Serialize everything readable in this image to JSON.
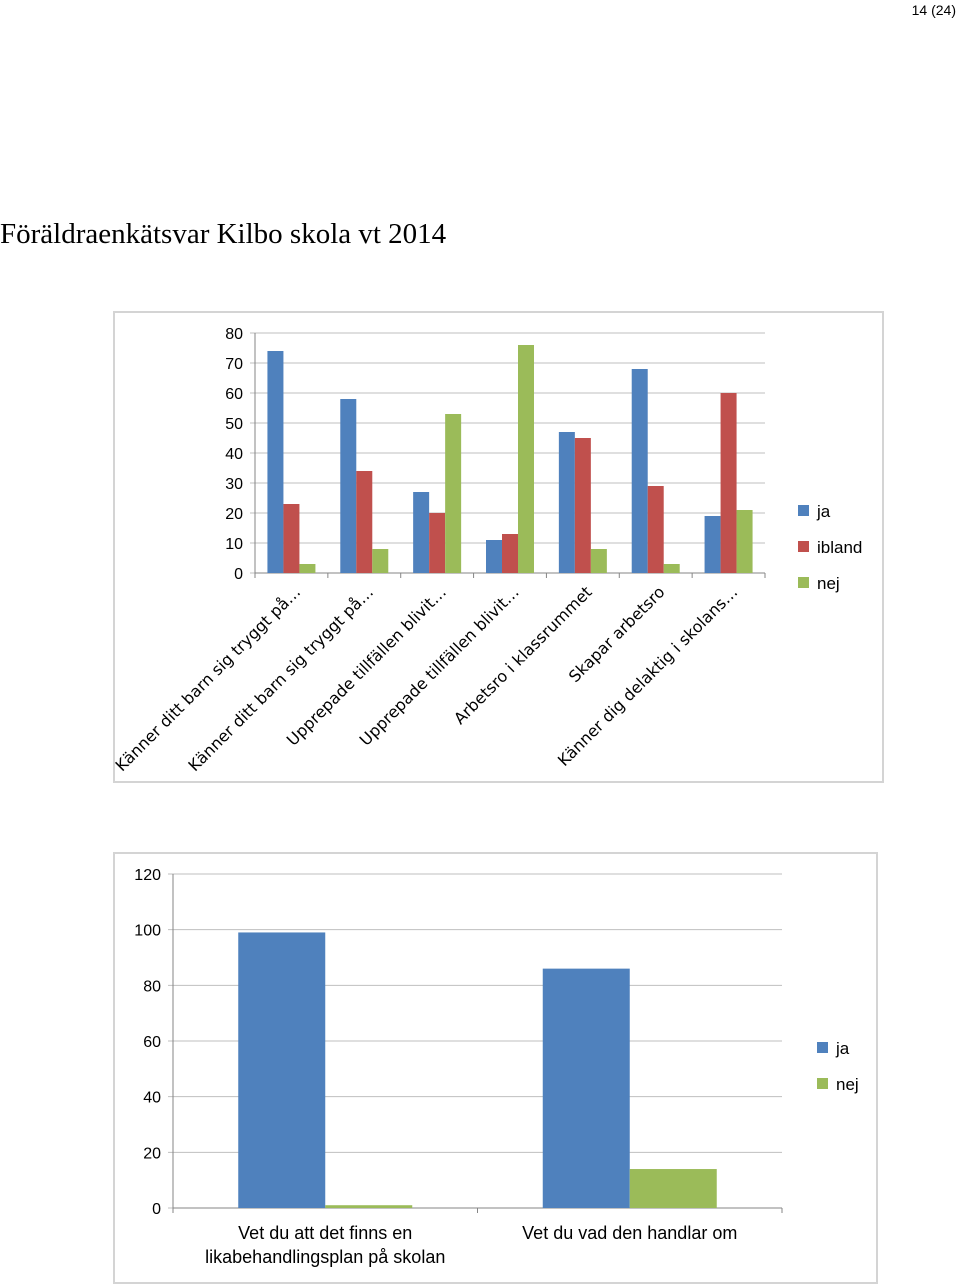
{
  "page": {
    "number_label": "14 (24)",
    "title": "Föräldraenkätsvar Kilbo skola vt 2014"
  },
  "colors": {
    "ja": "#4F81BD",
    "ibland": "#C0504D",
    "nej": "#9BBB59",
    "grid": "#bfbfbf",
    "axis": "#868686"
  },
  "chart_data": [
    {
      "type": "bar",
      "title": "",
      "xlabel": "",
      "ylabel": "",
      "ylim": [
        0,
        80
      ],
      "yticks": [
        0,
        10,
        20,
        30,
        40,
        50,
        60,
        70,
        80
      ],
      "legend_position": "right",
      "categories": [
        "Känner ditt barn sig tryggt på…",
        "Känner ditt barn sig tryggt på…",
        "Upprepade tillfällen blivit…",
        "Upprepade tillfällen blivit…",
        "Arbetsro i klassrummet",
        "Skapar arbetsro",
        "Känner dig delaktig i skolans…"
      ],
      "series": [
        {
          "name": "ja",
          "values": [
            74,
            58,
            27,
            11,
            47,
            68,
            19
          ]
        },
        {
          "name": "ibland",
          "values": [
            23,
            34,
            20,
            13,
            45,
            29,
            60
          ]
        },
        {
          "name": "nej",
          "values": [
            3,
            8,
            53,
            76,
            8,
            3,
            21
          ]
        }
      ]
    },
    {
      "type": "bar",
      "title": "",
      "xlabel": "",
      "ylabel": "",
      "ylim": [
        0,
        120
      ],
      "yticks": [
        0,
        20,
        40,
        60,
        80,
        100,
        120
      ],
      "legend_position": "right",
      "categories": [
        "Vet du att det finns en likabehandlingsplan på skolan",
        "Vet du vad den handlar om"
      ],
      "category_lines": [
        [
          "Vet du att det finns en",
          "likabehandlingsplan på skolan"
        ],
        [
          "Vet du vad den handlar om"
        ]
      ],
      "series": [
        {
          "name": "ja",
          "values": [
            99,
            86
          ]
        },
        {
          "name": "nej",
          "values": [
            1,
            14
          ]
        }
      ]
    }
  ]
}
